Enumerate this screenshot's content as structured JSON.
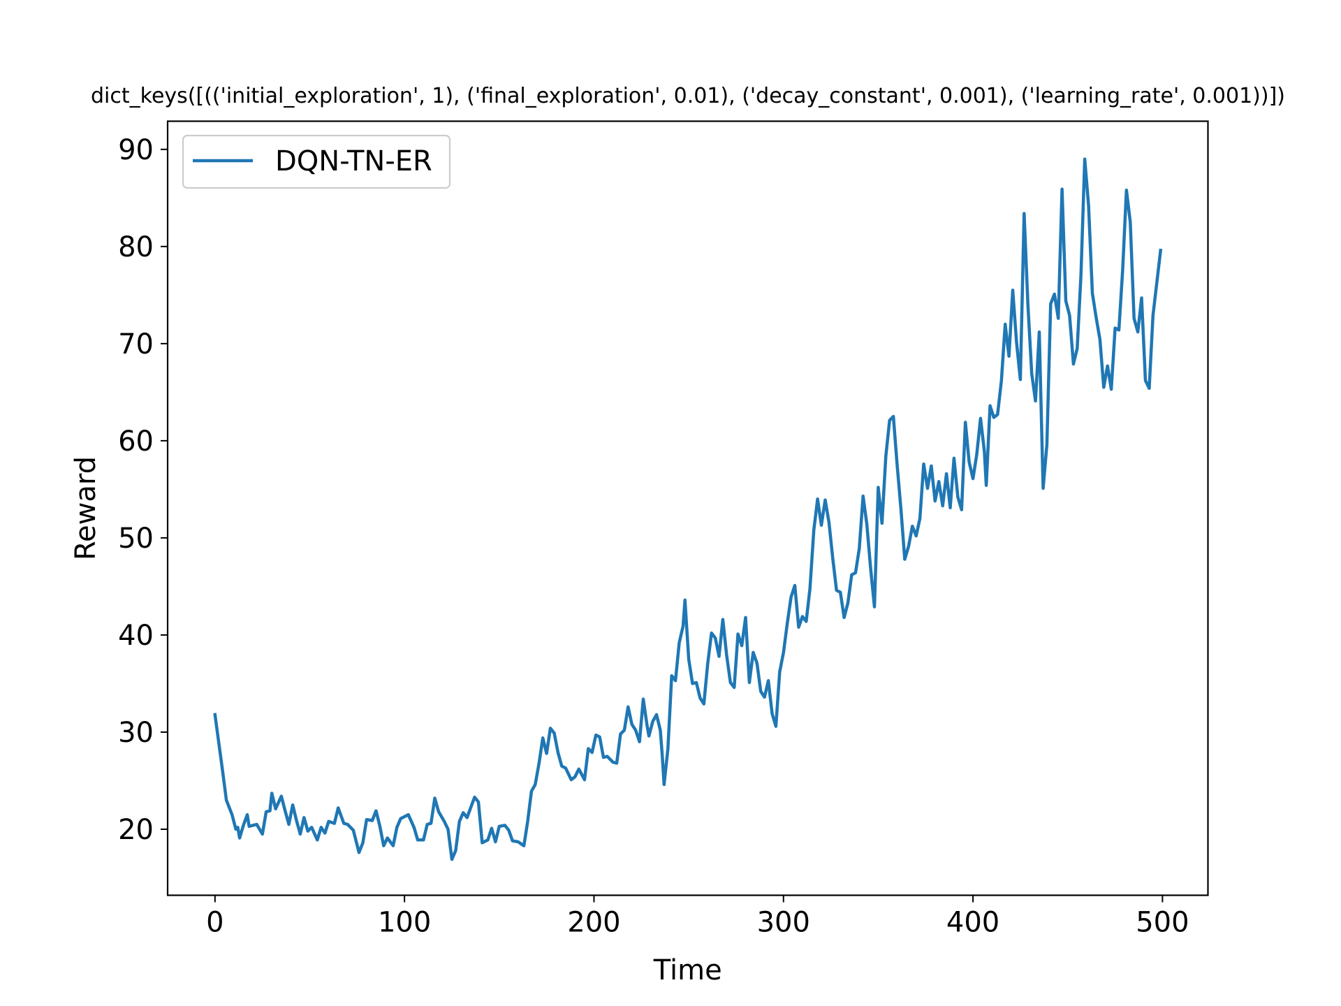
{
  "chart_data": {
    "type": "line",
    "title": "dict_keys([(('initial_exploration', 1), ('final_exploration', 0.01), ('decay_constant', 0.001), ('learning_rate', 0.001))])",
    "xlabel": "Time",
    "ylabel": "Reward",
    "xlim": [
      -25,
      524
    ],
    "ylim": [
      13.2,
      92.9
    ],
    "xticks": [
      0,
      100,
      200,
      300,
      400,
      500
    ],
    "yticks": [
      20,
      30,
      40,
      50,
      60,
      70,
      80,
      90
    ],
    "grid": false,
    "legend_position": "top-left",
    "series": [
      {
        "name": "DQN-TN-ER",
        "color": "#1f77b4",
        "points": [
          [
            0,
            31.8
          ],
          [
            4,
            26
          ],
          [
            6,
            23
          ],
          [
            9,
            21.5
          ],
          [
            11,
            20
          ],
          [
            12,
            20.2
          ],
          [
            13,
            19.1
          ],
          [
            15,
            20.4
          ],
          [
            17,
            21.5
          ],
          [
            18,
            20.3
          ],
          [
            22,
            20.5
          ],
          [
            25,
            19.5
          ],
          [
            27,
            21.8
          ],
          [
            29,
            21.9
          ],
          [
            30,
            23.7
          ],
          [
            32,
            22.1
          ],
          [
            35,
            23.4
          ],
          [
            37,
            21.9
          ],
          [
            39,
            20.5
          ],
          [
            41,
            22.5
          ],
          [
            43,
            20.9
          ],
          [
            45,
            19.5
          ],
          [
            47,
            21.2
          ],
          [
            49,
            19.8
          ],
          [
            51,
            20.2
          ],
          [
            54,
            18.9
          ],
          [
            56,
            20.2
          ],
          [
            58,
            19.6
          ],
          [
            60,
            20.8
          ],
          [
            63,
            20.6
          ],
          [
            65,
            22.2
          ],
          [
            68,
            20.6
          ],
          [
            70,
            20.5
          ],
          [
            73,
            19.9
          ],
          [
            76,
            17.6
          ],
          [
            78,
            18.6
          ],
          [
            80,
            21
          ],
          [
            83,
            20.9
          ],
          [
            85,
            21.9
          ],
          [
            87,
            20.3
          ],
          [
            89,
            18.3
          ],
          [
            91,
            19.1
          ],
          [
            94,
            18.3
          ],
          [
            96,
            20.2
          ],
          [
            98,
            21.1
          ],
          [
            102,
            21.5
          ],
          [
            105,
            20.2
          ],
          [
            107,
            18.9
          ],
          [
            110,
            18.9
          ],
          [
            112,
            20.5
          ],
          [
            114,
            20.6
          ],
          [
            116,
            23.2
          ],
          [
            118,
            21.8
          ],
          [
            121,
            20.8
          ],
          [
            123,
            20
          ],
          [
            125,
            16.9
          ],
          [
            127,
            17.8
          ],
          [
            129,
            20.8
          ],
          [
            131,
            21.7
          ],
          [
            133,
            21.2
          ],
          [
            137,
            23.3
          ],
          [
            139,
            22.8
          ],
          [
            141,
            18.6
          ],
          [
            144,
            18.9
          ],
          [
            146,
            20.1
          ],
          [
            148,
            18.7
          ],
          [
            150,
            20.3
          ],
          [
            153,
            20.4
          ],
          [
            155,
            19.9
          ],
          [
            157,
            18.8
          ],
          [
            160,
            18.7
          ],
          [
            163,
            18.3
          ],
          [
            165,
            20.8
          ],
          [
            167,
            23.9
          ],
          [
            169,
            24.6
          ],
          [
            171,
            26.8
          ],
          [
            173,
            29.4
          ],
          [
            175,
            27.8
          ],
          [
            177,
            30.4
          ],
          [
            179,
            29.9
          ],
          [
            181,
            27.9
          ],
          [
            183,
            26.5
          ],
          [
            185,
            26.3
          ],
          [
            188,
            25.1
          ],
          [
            190,
            25.4
          ],
          [
            192,
            26.2
          ],
          [
            195,
            25.1
          ],
          [
            197,
            28.3
          ],
          [
            199,
            27.9
          ],
          [
            201,
            29.7
          ],
          [
            203,
            29.5
          ],
          [
            205,
            27.4
          ],
          [
            207,
            27.5
          ],
          [
            210,
            26.9
          ],
          [
            212,
            26.8
          ],
          [
            214,
            29.8
          ],
          [
            216,
            30.2
          ],
          [
            218,
            32.6
          ],
          [
            220,
            30.8
          ],
          [
            222,
            30.2
          ],
          [
            224,
            29
          ],
          [
            226,
            33.4
          ],
          [
            228,
            30.7
          ],
          [
            229,
            29.6
          ],
          [
            231,
            31.1
          ],
          [
            233,
            31.8
          ],
          [
            235,
            30.2
          ],
          [
            236,
            27.7
          ],
          [
            237,
            24.6
          ],
          [
            239,
            28.3
          ],
          [
            241,
            35.8
          ],
          [
            243,
            35.3
          ],
          [
            245,
            39.2
          ],
          [
            247,
            40.9
          ],
          [
            248,
            43.6
          ],
          [
            250,
            37.5
          ],
          [
            252,
            35
          ],
          [
            254,
            35.1
          ],
          [
            256,
            33.5
          ],
          [
            258,
            32.9
          ],
          [
            260,
            37
          ],
          [
            262,
            40.2
          ],
          [
            264,
            39.7
          ],
          [
            266,
            37.8
          ],
          [
            268,
            41.6
          ],
          [
            270,
            37.9
          ],
          [
            272,
            35.1
          ],
          [
            274,
            34.6
          ],
          [
            276,
            40.1
          ],
          [
            278,
            38.9
          ],
          [
            280,
            41.8
          ],
          [
            282,
            35.1
          ],
          [
            284,
            38.2
          ],
          [
            286,
            37.1
          ],
          [
            288,
            34.2
          ],
          [
            290,
            33.6
          ],
          [
            292,
            35.3
          ],
          [
            294,
            31.9
          ],
          [
            296,
            30.6
          ],
          [
            298,
            36.2
          ],
          [
            300,
            38.2
          ],
          [
            302,
            41.2
          ],
          [
            304,
            43.9
          ],
          [
            306,
            45.1
          ],
          [
            308,
            40.8
          ],
          [
            310,
            41.9
          ],
          [
            312,
            41.4
          ],
          [
            314,
            44.8
          ],
          [
            316,
            50.8
          ],
          [
            318,
            54
          ],
          [
            320,
            51.3
          ],
          [
            322,
            53.9
          ],
          [
            324,
            51.6
          ],
          [
            326,
            47.9
          ],
          [
            328,
            44.6
          ],
          [
            330,
            44.4
          ],
          [
            332,
            41.8
          ],
          [
            334,
            43.3
          ],
          [
            336,
            46.2
          ],
          [
            338,
            46.4
          ],
          [
            340,
            48.9
          ],
          [
            342,
            54.3
          ],
          [
            344,
            51.4
          ],
          [
            346,
            46.8
          ],
          [
            348,
            42.9
          ],
          [
            350,
            55.2
          ],
          [
            352,
            51.5
          ],
          [
            354,
            58.4
          ],
          [
            356,
            62.1
          ],
          [
            358,
            62.5
          ],
          [
            360,
            57.5
          ],
          [
            362,
            52.9
          ],
          [
            364,
            47.8
          ],
          [
            366,
            49.1
          ],
          [
            368,
            51.2
          ],
          [
            370,
            50.2
          ],
          [
            372,
            52
          ],
          [
            374,
            57.6
          ],
          [
            376,
            55.1
          ],
          [
            378,
            57.4
          ],
          [
            380,
            53.8
          ],
          [
            382,
            55.8
          ],
          [
            384,
            53.3
          ],
          [
            386,
            56.6
          ],
          [
            388,
            53.1
          ],
          [
            390,
            58.2
          ],
          [
            392,
            54.2
          ],
          [
            394,
            52.9
          ],
          [
            396,
            61.9
          ],
          [
            398,
            57.8
          ],
          [
            400,
            56.1
          ],
          [
            402,
            58.6
          ],
          [
            404,
            62.3
          ],
          [
            406,
            58.9
          ],
          [
            407,
            55.4
          ],
          [
            409,
            63.6
          ],
          [
            411,
            62.4
          ],
          [
            413,
            62.7
          ],
          [
            415,
            66.2
          ],
          [
            417,
            72
          ],
          [
            419,
            68.7
          ],
          [
            421,
            75.5
          ],
          [
            423,
            70.1
          ],
          [
            425,
            66.3
          ],
          [
            427,
            83.4
          ],
          [
            429,
            73.9
          ],
          [
            431,
            66.9
          ],
          [
            433,
            64.1
          ],
          [
            435,
            71.2
          ],
          [
            437,
            55.1
          ],
          [
            439,
            59.6
          ],
          [
            441,
            74.1
          ],
          [
            443,
            75.1
          ],
          [
            445,
            72.6
          ],
          [
            447,
            85.9
          ],
          [
            449,
            74.4
          ],
          [
            451,
            72.9
          ],
          [
            453,
            67.9
          ],
          [
            455,
            69.5
          ],
          [
            457,
            77.1
          ],
          [
            459,
            89
          ],
          [
            461,
            84.2
          ],
          [
            463,
            75.2
          ],
          [
            465,
            72.7
          ],
          [
            467,
            70.4
          ],
          [
            469,
            65.5
          ],
          [
            471,
            67.7
          ],
          [
            473,
            65.3
          ],
          [
            475,
            71.6
          ],
          [
            477,
            71.4
          ],
          [
            479,
            77.6
          ],
          [
            481,
            85.8
          ],
          [
            483,
            82.5
          ],
          [
            485,
            72.6
          ],
          [
            487,
            71.2
          ],
          [
            489,
            74.7
          ],
          [
            491,
            66.2
          ],
          [
            493,
            65.4
          ],
          [
            495,
            72.9
          ],
          [
            499,
            79.6
          ]
        ]
      }
    ]
  }
}
